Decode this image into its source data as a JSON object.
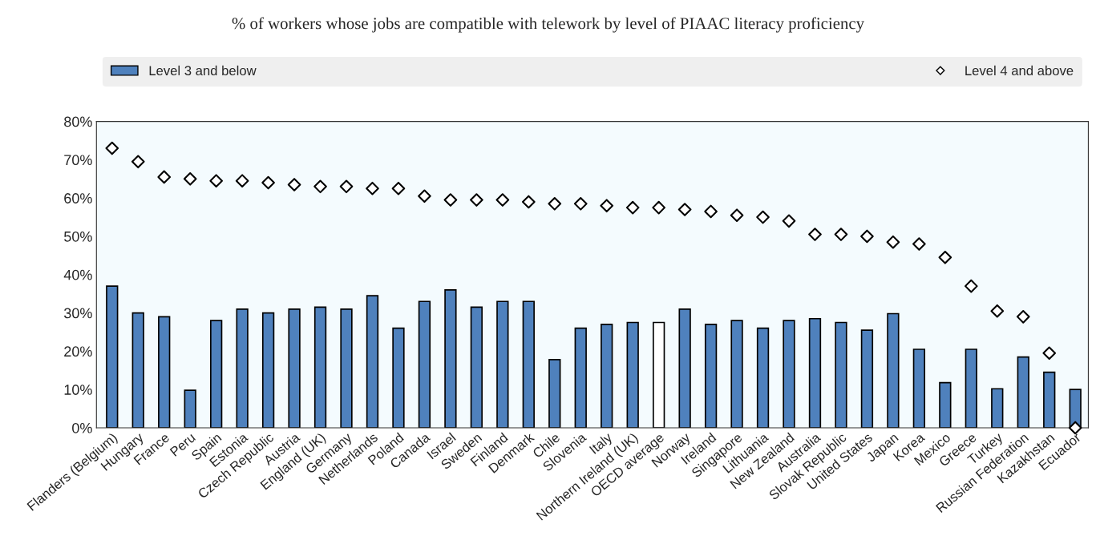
{
  "chart_data": {
    "type": "bar",
    "title": "% of workers whose jobs are compatible with telework by level of PIAAC literacy proficiency",
    "categories": [
      "Flanders (Belgium)",
      "Hungary",
      "France",
      "Peru",
      "Spain",
      "Estonia",
      "Czech Republic",
      "Austria",
      "England (UK)",
      "Germany",
      "Netherlands",
      "Poland",
      "Canada",
      "Israel",
      "Sweden",
      "Finland",
      "Denmark",
      "Chile",
      "Slovenia",
      "Italy",
      "Northern Ireland (UK)",
      "OECD average",
      "Norway",
      "Ireland",
      "Singapore",
      "Lithuania",
      "New Zealand",
      "Australia",
      "Slovak Republic",
      "United States",
      "Japan",
      "Korea",
      "Mexico",
      "Greece",
      "Turkey",
      "Russian Federation",
      "Kazakhstan",
      "Ecuador"
    ],
    "series": [
      {
        "name": "Level 3 and below",
        "color": "#4f81bd",
        "colors": [
          "#4f81bd",
          "#4f81bd",
          "#4f81bd",
          "#4f81bd",
          "#4f81bd",
          "#4f81bd",
          "#4f81bd",
          "#4f81bd",
          "#4f81bd",
          "#4f81bd",
          "#4f81bd",
          "#4f81bd",
          "#4f81bd",
          "#4f81bd",
          "#4f81bd",
          "#4f81bd",
          "#4f81bd",
          "#4f81bd",
          "#4f81bd",
          "#4f81bd",
          "#4f81bd",
          "#ffffff",
          "#4f81bd",
          "#4f81bd",
          "#4f81bd",
          "#4f81bd",
          "#4f81bd",
          "#4f81bd",
          "#4f81bd",
          "#4f81bd",
          "#4f81bd",
          "#4f81bd",
          "#4f81bd",
          "#4f81bd",
          "#4f81bd",
          "#4f81bd",
          "#4f81bd",
          "#4f81bd"
        ],
        "values": [
          37,
          30,
          29,
          9.8,
          28,
          31,
          30,
          31,
          31.5,
          31,
          34.5,
          26,
          33,
          36,
          31.5,
          33,
          33,
          17.8,
          26,
          27,
          27.5,
          27.5,
          31,
          27,
          28,
          26,
          28,
          28.5,
          27.5,
          25.5,
          29.8,
          20.5,
          11.8,
          20.5,
          10.2,
          18.5,
          14.5,
          10
        ]
      },
      {
        "name": "Level 4 and above",
        "type": "scatter",
        "marker": "diamond",
        "color": "#ffffff",
        "values": [
          73,
          69.5,
          65.5,
          65,
          64.5,
          64.5,
          64,
          63.5,
          63,
          63,
          62.5,
          62.5,
          60.5,
          59.5,
          59.5,
          59.5,
          59,
          58.5,
          58.5,
          58,
          57.5,
          57.5,
          57,
          56.5,
          55.5,
          55,
          54,
          50.5,
          50.5,
          50,
          48.5,
          48,
          44.5,
          37,
          30.5,
          29,
          19.5,
          0
        ]
      }
    ],
    "ylim": [
      0,
      80
    ],
    "yticks": [
      {
        "value": 0,
        "label": "0%"
      },
      {
        "value": 10,
        "label": "10%"
      },
      {
        "value": 20,
        "label": "20%"
      },
      {
        "value": 30,
        "label": "30%"
      },
      {
        "value": 40,
        "label": "40%"
      },
      {
        "value": 50,
        "label": "50%"
      },
      {
        "value": 60,
        "label": "60%"
      },
      {
        "value": 70,
        "label": "70%"
      },
      {
        "value": 80,
        "label": "80%"
      }
    ],
    "legend": "top",
    "grid": false
  }
}
